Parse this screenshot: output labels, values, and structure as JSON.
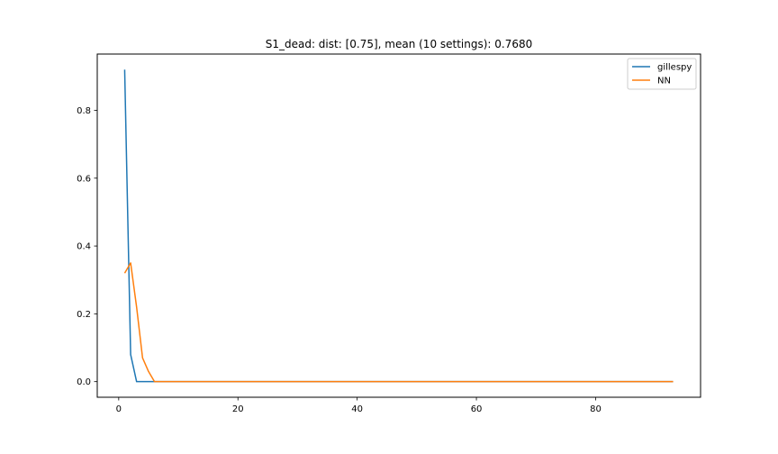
{
  "chart_data": {
    "type": "line",
    "title": "S1_dead: dist: [0.75], mean (10 settings): 0.7680",
    "xlabel": "",
    "ylabel": "",
    "xlim": [
      -3.6,
      97.6
    ],
    "ylim": [
      -0.046,
      0.966
    ],
    "xticks": [
      0,
      20,
      40,
      60,
      80
    ],
    "yticks": [
      0.0,
      0.2,
      0.4,
      0.6,
      0.8
    ],
    "xtick_labels": [
      "0",
      "20",
      "40",
      "60",
      "80"
    ],
    "ytick_labels": [
      "0.0",
      "0.2",
      "0.4",
      "0.6",
      "0.8"
    ],
    "grid": false,
    "legend_position": "top-right",
    "series": [
      {
        "name": "gillespy",
        "color": "#1f77b4",
        "x": [
          1,
          2,
          3,
          4,
          93
        ],
        "y": [
          0.92,
          0.08,
          0.0,
          0.0,
          0.0
        ]
      },
      {
        "name": "NN",
        "color": "#ff7f0e",
        "x": [
          1,
          2,
          3,
          4,
          5,
          6,
          93
        ],
        "y": [
          0.32,
          0.35,
          0.22,
          0.07,
          0.03,
          0.0,
          0.0
        ]
      }
    ]
  }
}
